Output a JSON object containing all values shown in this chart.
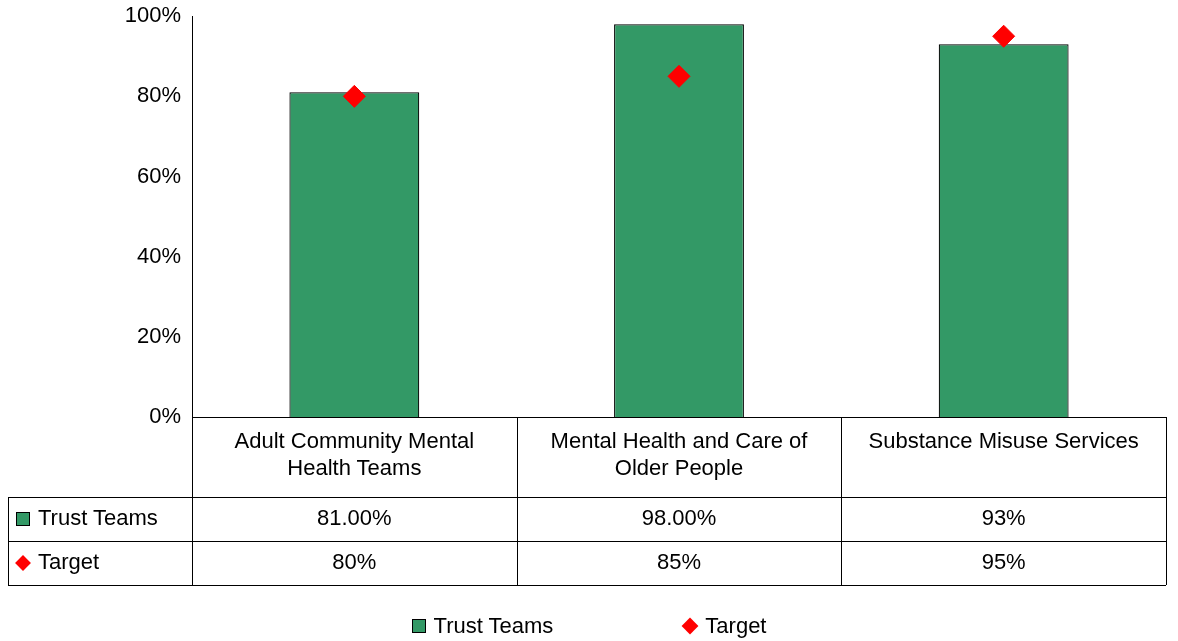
{
  "chart_data": {
    "type": "bar",
    "categories": [
      "Adult Community Mental Health Teams",
      "Mental Health and Care of Older People",
      "Substance Misuse Services"
    ],
    "series": [
      {
        "name": "Trust Teams",
        "type": "bar",
        "color": "#339966",
        "values": [
          81,
          98,
          93
        ],
        "value_labels": [
          "81.00%",
          "98.00%",
          "93%"
        ]
      },
      {
        "name": "Target",
        "type": "scatter",
        "color": "#ff0000",
        "marker": "diamond",
        "x": [
          "Adult Community Mental Health Teams",
          "Mental Health and Care of Older People",
          "Substance Misuse Services"
        ],
        "values": [
          80,
          85,
          95
        ],
        "value_labels": [
          "80%",
          "85%",
          "95%"
        ]
      }
    ],
    "ylim": [
      0,
      100
    ],
    "yticks": [
      {
        "value": 0,
        "label": "0%"
      },
      {
        "value": 20,
        "label": "20%"
      },
      {
        "value": 40,
        "label": "40%"
      },
      {
        "value": 60,
        "label": "60%"
      },
      {
        "value": 80,
        "label": "80%"
      },
      {
        "value": 100,
        "label": "100%"
      }
    ],
    "grid": false,
    "legend": "bottom"
  }
}
